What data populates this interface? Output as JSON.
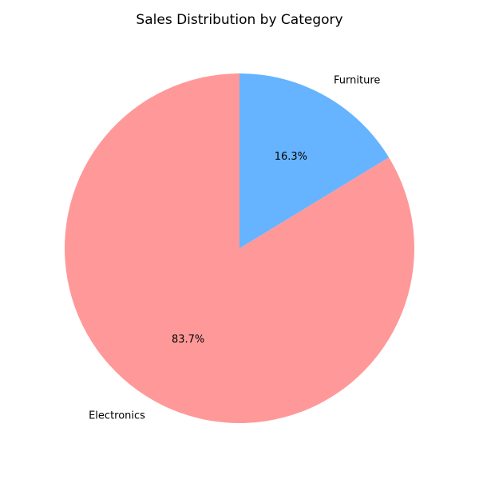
{
  "chart_data": {
    "type": "pie",
    "title": "Sales Distribution by Category",
    "categories": [
      "Electronics",
      "Furniture"
    ],
    "values": [
      83.7,
      16.3
    ],
    "value_labels": [
      "83.7%",
      "16.3%"
    ],
    "colors": [
      "#ff9999",
      "#66b3ff"
    ],
    "start_angle_deg": 90,
    "direction": "counterclockwise",
    "legend": "none"
  }
}
